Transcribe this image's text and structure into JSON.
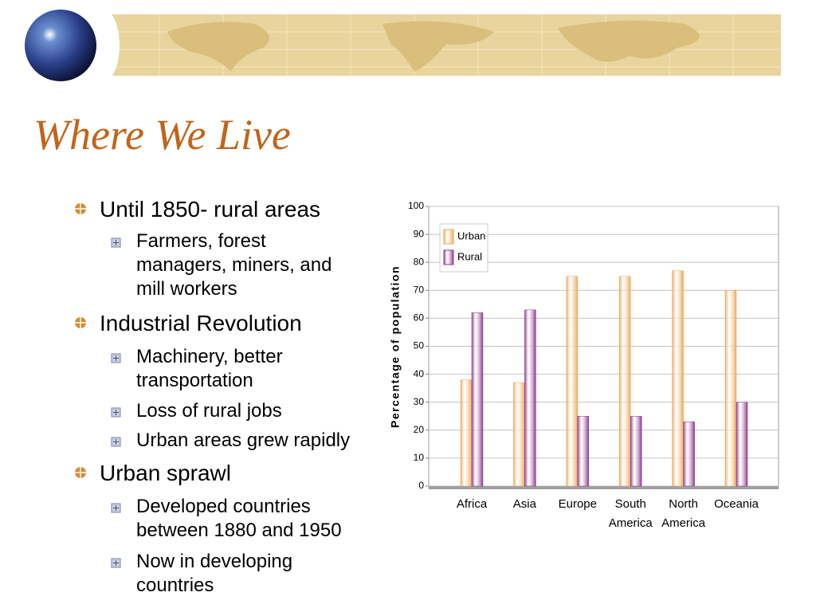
{
  "slide": {
    "title": "Where We Live",
    "bullets": [
      {
        "text": "Until 1850- rural areas",
        "items": [
          {
            "lines": [
              "Farmers, forest",
              "managers, miners, and",
              "mill workers"
            ]
          }
        ]
      },
      {
        "text": "Industrial Revolution",
        "items": [
          {
            "lines": [
              "Machinery, better",
              "transportation"
            ]
          },
          {
            "lines": [
              "Loss of rural jobs"
            ]
          },
          {
            "lines": [
              "Urban areas grew rapidly"
            ]
          }
        ]
      },
      {
        "text": "Urban sprawl",
        "items": [
          {
            "lines": [
              "Developed countries",
              "between 1880 and 1950"
            ]
          },
          {
            "lines": [
              "Now in developing",
              "countries"
            ]
          }
        ]
      }
    ]
  },
  "chart_data": {
    "type": "bar",
    "ylabel": "Percentage of population",
    "categories": [
      "Africa",
      "Asia",
      "Europe",
      "South America",
      "North America",
      "Oceania"
    ],
    "series": [
      {
        "name": "Urban",
        "color": "#eea85a",
        "values": [
          38,
          37,
          75,
          75,
          77,
          70
        ]
      },
      {
        "name": "Rural",
        "color": "#8e3a8e",
        "values": [
          62,
          63,
          25,
          25,
          23,
          30
        ]
      }
    ],
    "ylim": [
      0,
      100
    ],
    "yticks": [
      0,
      10,
      20,
      30,
      40,
      50,
      60,
      70,
      80,
      90,
      100
    ],
    "grid": true,
    "legend": "top-left"
  }
}
